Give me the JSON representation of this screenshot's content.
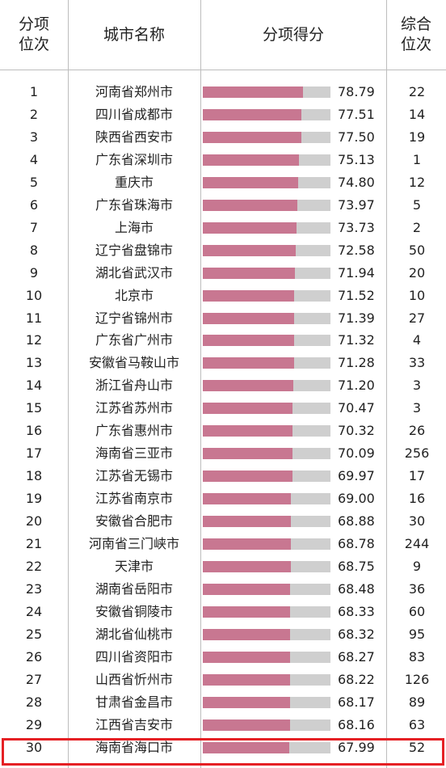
{
  "headers": {
    "rank": [
      "分项",
      "位次"
    ],
    "city": "城市名称",
    "score": "分项得分",
    "overall": [
      "综合",
      "位次"
    ]
  },
  "chart_data": {
    "type": "bar",
    "categories": [
      "河南省郑州市",
      "四川省成都市",
      "陕西省西安市",
      "广东省深圳市",
      "重庆市",
      "广东省珠海市",
      "上海市",
      "辽宁省盘锦市",
      "湖北省武汉市",
      "北京市",
      "辽宁省锦州市",
      "广东省广州市",
      "安徽省马鞍山市",
      "浙江省舟山市",
      "江苏省苏州市",
      "广东省惠州市",
      "海南省三亚市",
      "江苏省无锡市",
      "江苏省南京市",
      "安徽省合肥市",
      "河南省三门峡市",
      "天津市",
      "湖南省岳阳市",
      "安徽省铜陵市",
      "湖北省仙桃市",
      "四川省资阳市",
      "山西省忻州市",
      "甘肃省金昌市",
      "江西省吉安市",
      "海南省海口市"
    ],
    "values": [
      78.79,
      77.51,
      77.5,
      75.13,
      74.8,
      73.97,
      73.73,
      72.58,
      71.94,
      71.52,
      71.39,
      71.32,
      71.28,
      71.2,
      70.47,
      70.32,
      70.09,
      69.97,
      69.0,
      68.88,
      68.78,
      68.75,
      68.48,
      68.33,
      68.32,
      68.27,
      68.22,
      68.17,
      68.16,
      67.99
    ],
    "value_labels": [
      "78.79",
      "77.51",
      "77.50",
      "75.13",
      "74.80",
      "73.97",
      "73.73",
      "72.58",
      "71.94",
      "71.52",
      "71.39",
      "71.32",
      "71.28",
      "71.20",
      "70.47",
      "70.32",
      "70.09",
      "69.97",
      "69.00",
      "68.88",
      "68.78",
      "68.75",
      "68.48",
      "68.33",
      "68.32",
      "68.27",
      "68.22",
      "68.17",
      "68.16",
      "67.99"
    ],
    "ranks": [
      "1",
      "2",
      "3",
      "4",
      "5",
      "6",
      "7",
      "8",
      "9",
      "10",
      "11",
      "12",
      "13",
      "14",
      "15",
      "16",
      "17",
      "18",
      "19",
      "20",
      "21",
      "22",
      "23",
      "24",
      "25",
      "26",
      "27",
      "28",
      "29",
      "30"
    ],
    "overall_ranks": [
      "22",
      "14",
      "19",
      "1",
      "12",
      "5",
      "2",
      "50",
      "20",
      "10",
      "27",
      "4",
      "33",
      "3",
      "3",
      "26",
      "256",
      "17",
      "16",
      "30",
      "244",
      "9",
      "36",
      "60",
      "95",
      "83",
      "126",
      "89",
      "63",
      "52"
    ],
    "ylim": [
      0,
      100
    ],
    "bar_color": "#c87791",
    "bar_bg_color": "#cfcfcf",
    "highlight_row": "30",
    "highlight_color": "#e52024"
  }
}
